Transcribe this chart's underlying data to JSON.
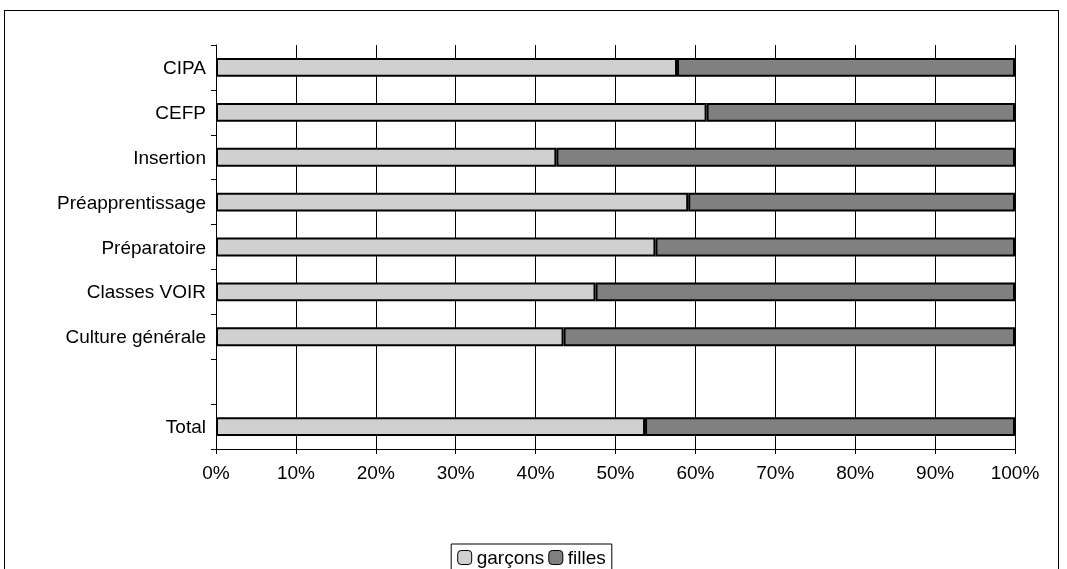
{
  "chart_data": {
    "type": "bar",
    "orientation": "horizontal",
    "stacked": true,
    "categories": [
      "CIPA",
      "CEFP",
      "Insertion",
      "Préapprentissage",
      "Préparatoire",
      "Classes VOIR",
      "Culture générale",
      null,
      "Total"
    ],
    "series": [
      {
        "name": "garçons",
        "color": "#d0d0d0",
        "values": [
          57.7,
          61.4,
          42.6,
          59.1,
          55.0,
          47.5,
          43.5,
          null,
          53.7
        ]
      },
      {
        "name": "filles",
        "color": "#808080",
        "values": [
          42.3,
          38.6,
          57.4,
          40.9,
          45.0,
          52.5,
          56.5,
          null,
          46.3
        ]
      }
    ],
    "xlim": [
      0,
      100
    ],
    "xticks": [
      {
        "value": 0,
        "label": "0%"
      },
      {
        "value": 10,
        "label": "10%"
      },
      {
        "value": 20,
        "label": "20%"
      },
      {
        "value": 30,
        "label": "30%"
      },
      {
        "value": 40,
        "label": "40%"
      },
      {
        "value": 50,
        "label": "50%"
      },
      {
        "value": 60,
        "label": "60%"
      },
      {
        "value": 70,
        "label": "70%"
      },
      {
        "value": 80,
        "label": "80%"
      },
      {
        "value": 90,
        "label": "90%"
      },
      {
        "value": 100,
        "label": "100%"
      }
    ],
    "grid": "x",
    "legend": "bottom"
  }
}
